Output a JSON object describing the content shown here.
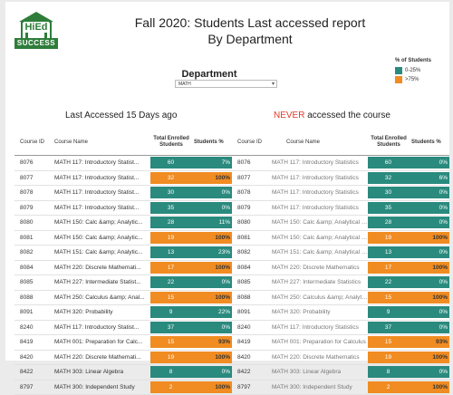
{
  "logo": {
    "top_text": "HiEd",
    "bottom_text": "SUCCESS"
  },
  "title": {
    "line1": "Fall 2020:  Students Last accessed report",
    "line2": "By Department"
  },
  "filter": {
    "label": "Department",
    "value": "MATH"
  },
  "legend": {
    "title": "% of Students",
    "items": [
      {
        "label": "0-25%",
        "color": "#2a8a7e"
      },
      {
        "label": ">75%",
        "color": "#f08c22"
      }
    ]
  },
  "colors": {
    "low": "#2a8a7e",
    "high": "#f08c22"
  },
  "left_table": {
    "heading": "Last Accessed  15 Days ago",
    "headers": {
      "course_id": "Course ID",
      "course_name": "Course Name",
      "total_enrolled": "Total Enrolled Students",
      "students_pct": "Students %"
    },
    "rows": [
      {
        "id": "8076",
        "name": "MATH 117: Introductory Statist...",
        "total": "60",
        "pct": "7%",
        "level": "low"
      },
      {
        "id": "8077",
        "name": "MATH 117: Introductory Statist...",
        "total": "32",
        "pct": "100%",
        "level": "high"
      },
      {
        "id": "8078",
        "name": "MATH 117: Introductory Statist...",
        "total": "30",
        "pct": "0%",
        "level": "low"
      },
      {
        "id": "8079",
        "name": "MATH 117: Introductory Statist...",
        "total": "35",
        "pct": "0%",
        "level": "low"
      },
      {
        "id": "8080",
        "name": "MATH 150: Calc &amp; Analytic...",
        "total": "28",
        "pct": "11%",
        "level": "low"
      },
      {
        "id": "8081",
        "name": "MATH 150: Calc &amp; Analytic...",
        "total": "19",
        "pct": "100%",
        "level": "high"
      },
      {
        "id": "8082",
        "name": "MATH 151: Calc &amp; Analytic...",
        "total": "13",
        "pct": "23%",
        "level": "low"
      },
      {
        "id": "8084",
        "name": "MATH 220: Discrete Mathemati...",
        "total": "17",
        "pct": "100%",
        "level": "high"
      },
      {
        "id": "8085",
        "name": "MATH 227: Intermediate Statist...",
        "total": "22",
        "pct": "0%",
        "level": "low"
      },
      {
        "id": "8088",
        "name": "MATH 250: Calculus &amp; Anal...",
        "total": "15",
        "pct": "100%",
        "level": "high"
      },
      {
        "id": "8091",
        "name": "MATH 320: Probability",
        "total": "9",
        "pct": "22%",
        "level": "low"
      },
      {
        "id": "8240",
        "name": "MATH 117: Introductory Statist...",
        "total": "37",
        "pct": "0%",
        "level": "low"
      },
      {
        "id": "8419",
        "name": "MATH 001: Preparation for Calc...",
        "total": "15",
        "pct": "93%",
        "level": "high"
      },
      {
        "id": "8420",
        "name": "MATH 220: Discrete Mathemati...",
        "total": "19",
        "pct": "100%",
        "level": "high"
      },
      {
        "id": "8422",
        "name": "MATH 303: Linear Algebra",
        "total": "8",
        "pct": "0%",
        "level": "low"
      },
      {
        "id": "8797",
        "name": "MATH 300: Independent Study",
        "total": "2",
        "pct": "100%",
        "level": "high"
      }
    ]
  },
  "right_table": {
    "heading_highlight": "NEVER",
    "heading_rest": " accessed the course",
    "headers": {
      "course_id": "Course ID",
      "course_name": "Course Name",
      "total_enrolled": "Total Enrolled Students",
      "students_pct": "Students %"
    },
    "rows": [
      {
        "id": "8076",
        "name": "MATH 117: Introductory Statistics",
        "total": "60",
        "pct": "0%",
        "level": "low"
      },
      {
        "id": "8077",
        "name": "MATH 117: Introductory Statistics",
        "total": "32",
        "pct": "6%",
        "level": "low"
      },
      {
        "id": "8078",
        "name": "MATH 117: Introductory Statistics",
        "total": "30",
        "pct": "0%",
        "level": "low"
      },
      {
        "id": "8079",
        "name": "MATH 117: Introductory Statistics",
        "total": "35",
        "pct": "0%",
        "level": "low"
      },
      {
        "id": "8080",
        "name": "MATH 150: Calc &amp; Analytical Ge...",
        "total": "28",
        "pct": "0%",
        "level": "low"
      },
      {
        "id": "8081",
        "name": "MATH 150: Calc &amp; Analytical Ge...",
        "total": "19",
        "pct": "100%",
        "level": "high"
      },
      {
        "id": "8082",
        "name": "MATH 151: Calc &amp; Analytical Ge...",
        "total": "13",
        "pct": "0%",
        "level": "low"
      },
      {
        "id": "8084",
        "name": "MATH 220: Discrete Mathematics",
        "total": "17",
        "pct": "100%",
        "level": "high"
      },
      {
        "id": "8085",
        "name": "MATH 227: Intermediate Statistics",
        "total": "22",
        "pct": "0%",
        "level": "low"
      },
      {
        "id": "8088",
        "name": "MATH 250: Calculus &amp; Analytic...",
        "total": "15",
        "pct": "100%",
        "level": "high"
      },
      {
        "id": "8091",
        "name": "MATH 320: Probability",
        "total": "9",
        "pct": "0%",
        "level": "low"
      },
      {
        "id": "8240",
        "name": "MATH 117: Introductory Statistics",
        "total": "37",
        "pct": "0%",
        "level": "low"
      },
      {
        "id": "8419",
        "name": "MATH 001: Preparation for Calculus",
        "total": "15",
        "pct": "93%",
        "level": "high"
      },
      {
        "id": "8420",
        "name": "MATH 220: Discrete Mathematics",
        "total": "19",
        "pct": "100%",
        "level": "high"
      },
      {
        "id": "8422",
        "name": "MATH 303: Linear Algebra",
        "total": "8",
        "pct": "0%",
        "level": "low"
      },
      {
        "id": "8797",
        "name": "MATH 300: Independent Study",
        "total": "2",
        "pct": "100%",
        "level": "high"
      }
    ]
  }
}
